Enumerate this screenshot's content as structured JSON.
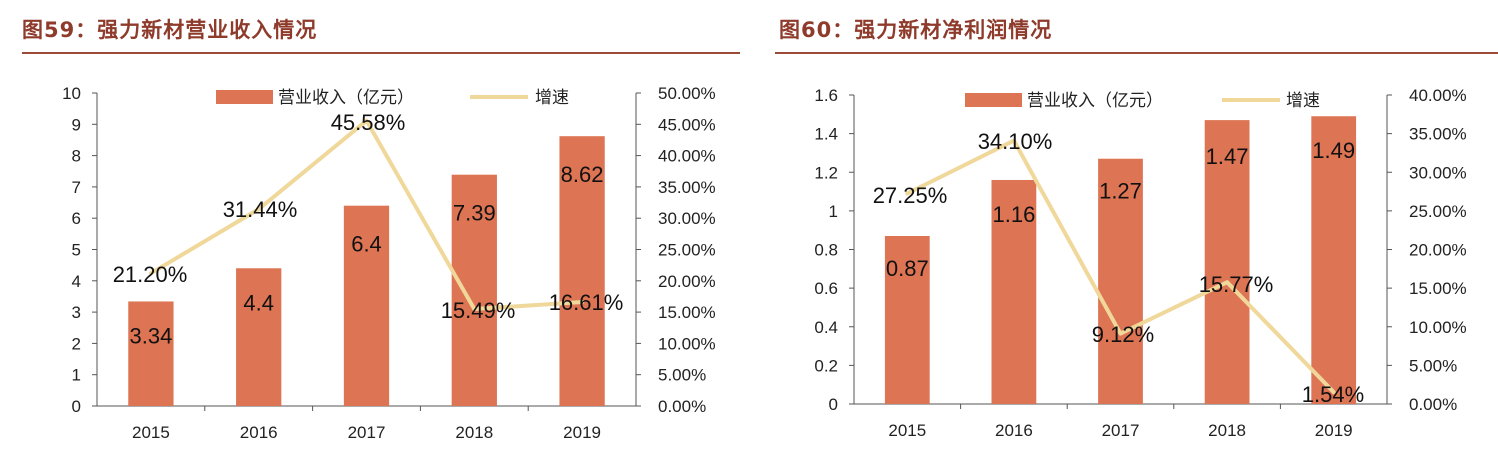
{
  "charts": [
    {
      "title": "图59：强力新材营业收入情况",
      "chart_data": {
        "type": "bar+line",
        "categories": [
          "2015",
          "2016",
          "2017",
          "2018",
          "2019"
        ],
        "series": [
          {
            "name": "营业收入（亿元）",
            "type": "bar",
            "axis": "left",
            "values": [
              3.34,
              4.4,
              6.4,
              7.39,
              8.62
            ],
            "labels": [
              "3.34",
              "4.4",
              "6.4",
              "7.39",
              "8.62"
            ],
            "color": "#dd7453"
          },
          {
            "name": "增速",
            "type": "line",
            "axis": "right",
            "values": [
              21.2,
              31.44,
              45.58,
              15.49,
              16.61
            ],
            "labels": [
              "21.20%",
              "31.44%",
              "45.58%",
              "15.49%",
              "16.61%"
            ],
            "color": "#f0d79a"
          }
        ],
        "ylim_left": [
          0,
          10
        ],
        "yticks_left": [
          "0",
          "1",
          "2",
          "3",
          "4",
          "5",
          "6",
          "7",
          "8",
          "9",
          "10"
        ],
        "ylim_right": [
          0,
          50
        ],
        "yticks_right": [
          "0.00%",
          "5.00%",
          "10.00%",
          "15.00%",
          "20.00%",
          "25.00%",
          "30.00%",
          "35.00%",
          "40.00%",
          "45.00%",
          "50.00%"
        ],
        "legend": "top-center",
        "grid": false
      }
    },
    {
      "title": "图60：强力新材净利润情况",
      "chart_data": {
        "type": "bar+line",
        "categories": [
          "2015",
          "2016",
          "2017",
          "2018",
          "2019"
        ],
        "series": [
          {
            "name": "营业收入（亿元）",
            "type": "bar",
            "axis": "left",
            "values": [
              0.87,
              1.16,
              1.27,
              1.47,
              1.49
            ],
            "labels": [
              "0.87",
              "1.16",
              "1.27",
              "1.47",
              "1.49"
            ],
            "color": "#dd7453"
          },
          {
            "name": "增速",
            "type": "line",
            "axis": "right",
            "values": [
              27.25,
              34.1,
              9.12,
              15.77,
              1.54
            ],
            "labels": [
              "27.25%",
              "34.10%",
              "9.12%",
              "15.77%",
              "1.54%"
            ],
            "color": "#f0d79a"
          }
        ],
        "ylim_left": [
          0,
          1.6
        ],
        "yticks_left": [
          "0",
          "0.2",
          "0.4",
          "0.6",
          "0.8",
          "1",
          "1.2",
          "1.4",
          "1.6"
        ],
        "ylim_right": [
          0,
          40
        ],
        "yticks_right": [
          "0.00%",
          "5.00%",
          "10.00%",
          "15.00%",
          "20.00%",
          "25.00%",
          "30.00%",
          "35.00%",
          "40.00%"
        ],
        "legend": "top-center",
        "grid": false
      }
    }
  ]
}
